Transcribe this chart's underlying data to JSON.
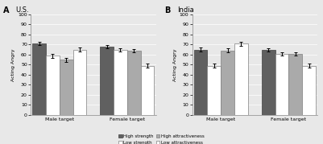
{
  "panel_A_title": "U.S.",
  "panel_B_title": "India",
  "panel_A_label": "A",
  "panel_B_label": "B",
  "ylabel": "Acting Angry",
  "ylim": [
    0,
    100
  ],
  "yticks": [
    0,
    10,
    20,
    30,
    40,
    50,
    60,
    70,
    80,
    90,
    100
  ],
  "groups": [
    "Male target",
    "Female target"
  ],
  "bar_colors": [
    "#606060",
    "#ffffff",
    "#aaaaaa",
    "#ffffff"
  ],
  "bar_edgecolors": [
    "#404040",
    "#808080",
    "#808080",
    "#808080"
  ],
  "bar_hatches": [
    "",
    "",
    "",
    ""
  ],
  "US_data": {
    "Male target": [
      71,
      59,
      55,
      65
    ],
    "Female target": [
      68,
      65,
      64,
      49
    ]
  },
  "US_errors": {
    "Male target": [
      1.5,
      2.0,
      2.0,
      2.0
    ],
    "Female target": [
      1.5,
      1.5,
      1.5,
      2.0
    ]
  },
  "India_data": {
    "Male target": [
      65,
      49,
      64,
      71
    ],
    "Female target": [
      65,
      61,
      61,
      49
    ]
  },
  "India_errors": {
    "Male target": [
      2.0,
      2.0,
      2.0,
      2.0
    ],
    "Female target": [
      1.5,
      1.5,
      1.5,
      2.0
    ]
  },
  "legend_labels": [
    "High strength",
    "Low strength",
    "High attractiveness",
    "Low attractiveness"
  ],
  "legend_colors": [
    "#606060",
    "#ffffff",
    "#aaaaaa",
    "#ffffff"
  ],
  "legend_hatches": [
    "",
    "",
    "",
    ""
  ],
  "legend_edgecolors": [
    "#404040",
    "#808080",
    "#808080",
    "#808080"
  ],
  "legend_markers": [
    "■",
    "□",
    "■",
    "□"
  ],
  "background_color": "#e8e8e8"
}
